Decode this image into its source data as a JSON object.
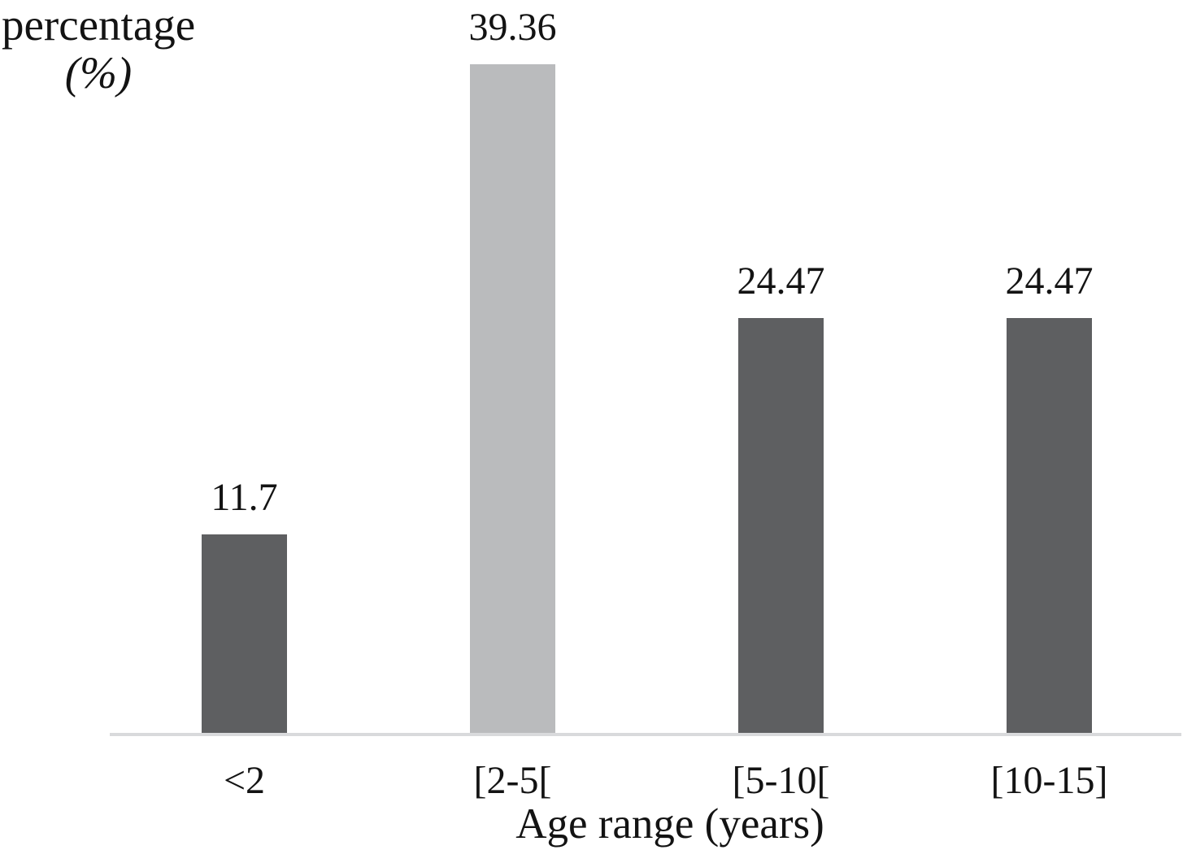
{
  "chart_data": {
    "type": "bar",
    "title": "",
    "categories": [
      "<2",
      "[2-5[",
      "[5-10[",
      "[10-15]"
    ],
    "values": [
      11.7,
      39.36,
      24.47,
      24.47
    ],
    "value_labels": [
      "11.7",
      "39.36",
      "24.47",
      "24.47"
    ],
    "xlabel": "Age range (years)",
    "ylabel_line1": "percentage",
    "ylabel_line2": "(%)",
    "ylim": [
      0,
      43
    ],
    "grid": false,
    "legend": false,
    "bar_colors": [
      "#5e5f61",
      "#babbbd",
      "#5e5f61",
      "#5e5f61"
    ],
    "colors": {
      "bar_default": "#5e5f61",
      "bar_highlight": "#babbbd",
      "axis_line": "#d9dadc",
      "text": "#131313"
    },
    "highlighted_category": "[2-5[",
    "axis_ticks_visible": false,
    "y_axis_values_visible": false
  }
}
